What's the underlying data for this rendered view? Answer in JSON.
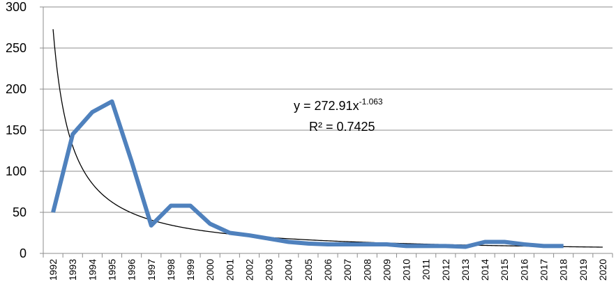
{
  "chart_data": {
    "type": "line",
    "title": "",
    "xlabel": "",
    "ylabel": "",
    "ylim": [
      0,
      300
    ],
    "yticks": [
      0,
      50,
      100,
      150,
      200,
      250,
      300
    ],
    "categories": [
      "1992",
      "1993",
      "1994",
      "1995",
      "1996",
      "1997",
      "1998",
      "1999",
      "2000",
      "2001",
      "2002",
      "2003",
      "2004",
      "2005",
      "2006",
      "2007",
      "2008",
      "2009",
      "2010",
      "2011",
      "2012",
      "2013",
      "2014",
      "2015",
      "2016",
      "2017",
      "2018",
      "2019",
      "2020"
    ],
    "grid": "horizontal",
    "legend": "none",
    "series": [
      {
        "values": [
          50,
          145,
          172,
          185,
          112,
          34,
          58,
          58,
          36,
          25,
          22,
          18,
          14,
          12,
          11,
          11,
          11,
          11,
          9,
          9,
          9,
          8,
          14,
          14,
          11,
          9,
          9,
          null,
          null
        ],
        "color": "#4f81bd"
      }
    ],
    "trendline": {
      "type": "power",
      "coefficient": 272.91,
      "exponent": -1.063,
      "color": "#000000",
      "equation_prefix": "y = 272.91x",
      "equation_exponent": "-1.063",
      "r_squared": "R² = 0.7425"
    }
  }
}
